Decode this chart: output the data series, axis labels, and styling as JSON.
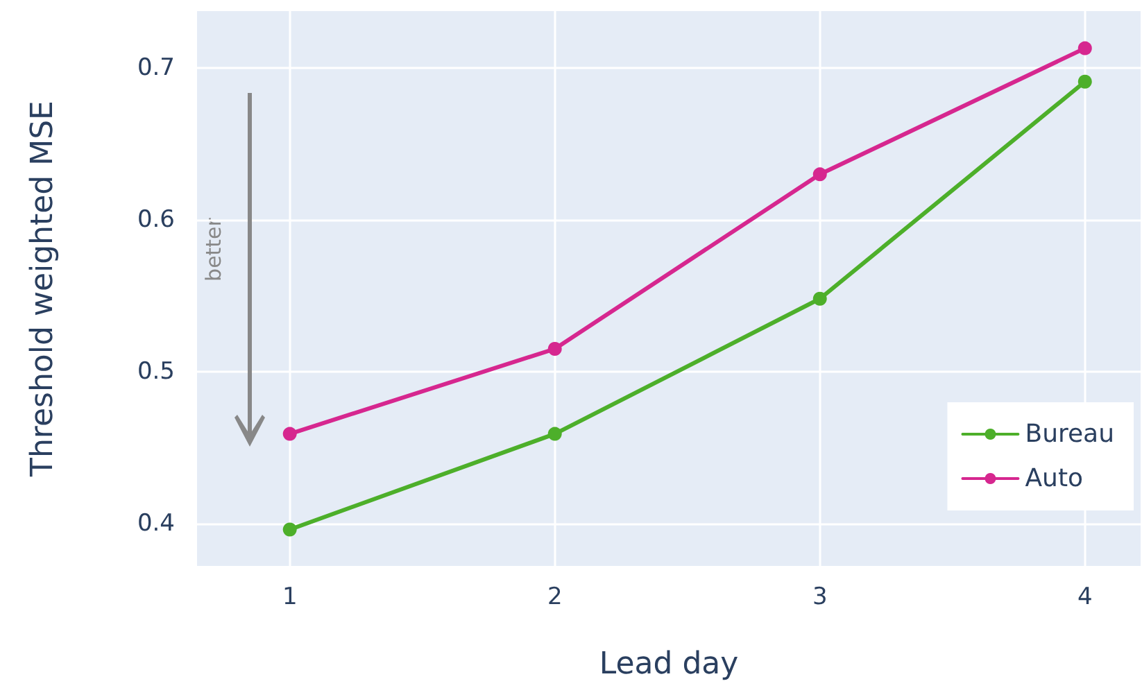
{
  "chart_data": {
    "type": "line",
    "xlabel": "Lead day",
    "ylabel": "Threshold weighted MSE",
    "x": [
      1,
      2,
      3,
      4
    ],
    "series": [
      {
        "name": "Bureau",
        "color": "#4daf2a",
        "values": [
          0.396,
          0.459,
          0.548,
          0.691
        ]
      },
      {
        "name": "Auto",
        "color": "#d6278f",
        "values": [
          0.459,
          0.515,
          0.63,
          0.713
        ]
      }
    ],
    "xlim": [
      0.65,
      4.21
    ],
    "xticks": [
      1,
      2,
      3,
      4
    ],
    "ylim": [
      0.372,
      0.7375
    ],
    "yticks": [
      0.4,
      0.5,
      0.6,
      0.7
    ],
    "annotations": [
      "better"
    ],
    "grid": true,
    "legend": "bottom right",
    "marker": "circle",
    "line_style": "solid"
  }
}
